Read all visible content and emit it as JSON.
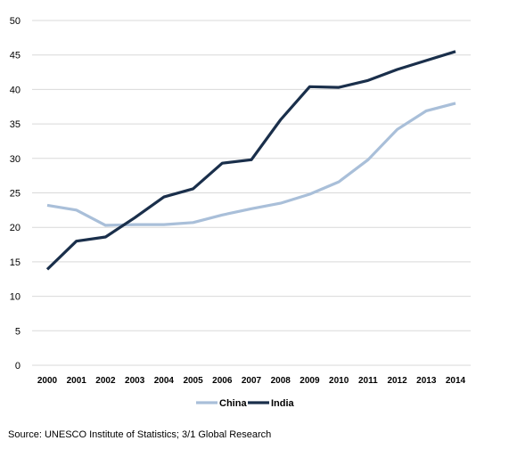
{
  "chart_data": {
    "type": "line",
    "x": [
      "2000",
      "2001",
      "2002",
      "2003",
      "2004",
      "2005",
      "2006",
      "2007",
      "2008",
      "2009",
      "2010",
      "2011",
      "2012",
      "2013",
      "2014"
    ],
    "series": [
      {
        "name": "China",
        "color": "#a9bfd9",
        "values": [
          23.2,
          22.5,
          20.3,
          20.4,
          20.4,
          20.7,
          21.8,
          22.7,
          23.5,
          24.8,
          26.6,
          29.8,
          34.2,
          36.9,
          38.0
        ]
      },
      {
        "name": "India",
        "color": "#1a2f4b",
        "values": [
          13.9,
          18.0,
          18.6,
          21.4,
          24.4,
          25.6,
          29.3,
          29.8,
          35.6,
          40.4,
          40.3,
          41.3,
          42.9,
          44.2,
          45.5
        ]
      }
    ],
    "ylim": [
      0,
      50
    ],
    "yticks": [
      "0",
      "5",
      "10",
      "15",
      "20",
      "25",
      "30",
      "35",
      "40",
      "45",
      "50"
    ],
    "grid": true,
    "legend_position": "bottom-center",
    "title": "",
    "xlabel": "",
    "ylabel": ""
  },
  "footer": {
    "source": "Source: UNESCO Institute of Statistics; 3/1 Global Research"
  }
}
